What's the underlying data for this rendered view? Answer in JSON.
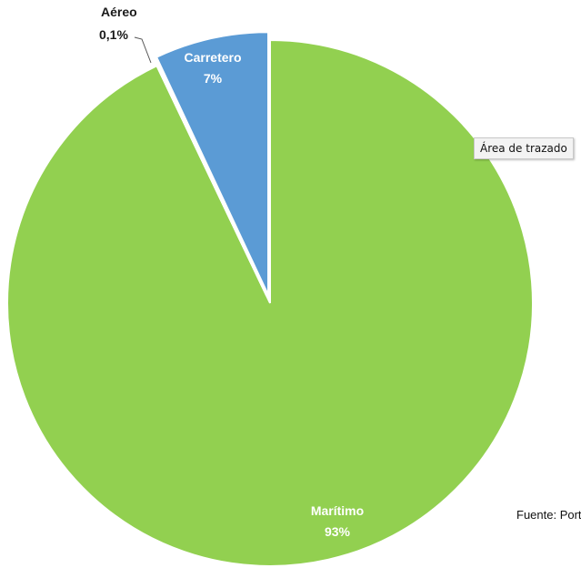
{
  "chart_data": {
    "type": "pie",
    "slices": [
      {
        "label": "Carretero",
        "value_text": "7%",
        "value": 7,
        "color": "#5b9bd5",
        "exploded": true
      },
      {
        "label": "Aéreo",
        "value_text": "0,1%",
        "value": 0.1,
        "color": "#a6c9ec",
        "exploded": true
      },
      {
        "label": "Marítimo",
        "value_text": "93%",
        "value": 93,
        "color": "#92d050",
        "exploded": false
      }
    ]
  },
  "tooltip": "Área de trazado",
  "source_text": "Fuente: PortalC"
}
